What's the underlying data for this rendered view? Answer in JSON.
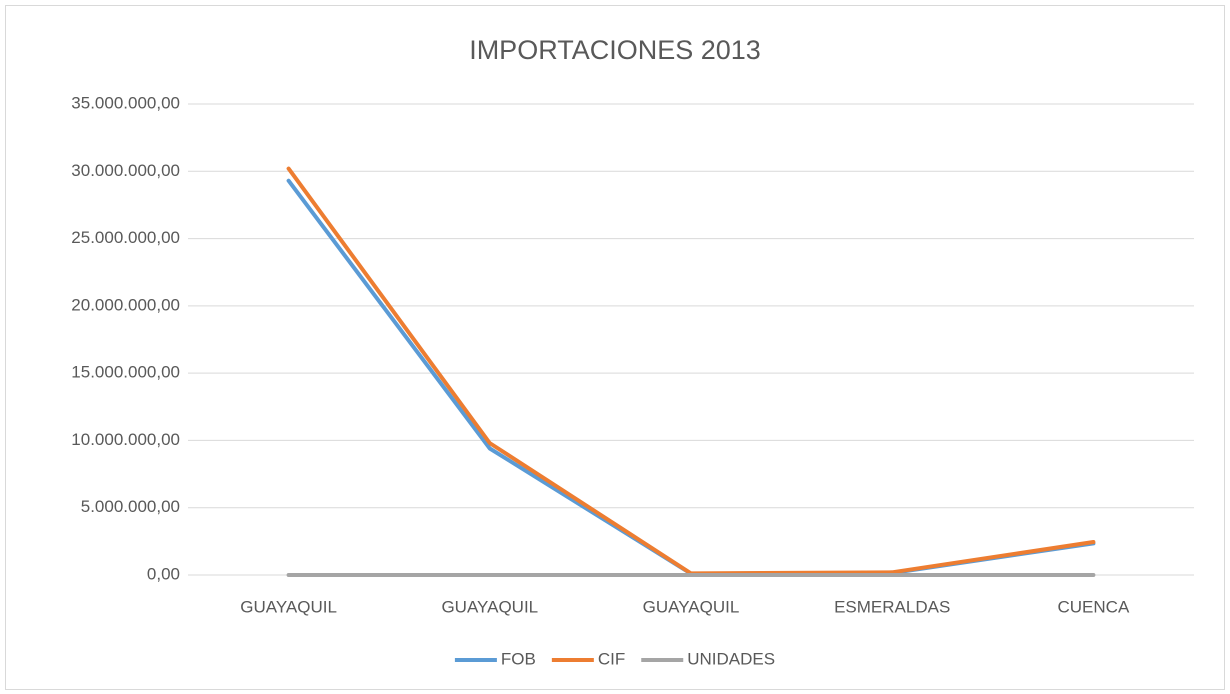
{
  "chart_data": {
    "type": "line",
    "title": "IMPORTACIONES 2013",
    "categories": [
      "GUAYAQUIL",
      "GUAYAQUIL",
      "GUAYAQUIL",
      "ESMERALDAS",
      "CUENCA"
    ],
    "series": [
      {
        "name": "FOB",
        "color": "#5b9bd5",
        "values": [
          29300000,
          9400000,
          100000,
          150000,
          2350000
        ]
      },
      {
        "name": "CIF",
        "color": "#ed7d31",
        "values": [
          30200000,
          9800000,
          120000,
          200000,
          2450000
        ]
      },
      {
        "name": "UNIDADES",
        "color": "#a5a5a5",
        "values": [
          0,
          0,
          0,
          0,
          0
        ]
      }
    ],
    "ylim": [
      0,
      35000000
    ],
    "yticks": [
      {
        "value": 0,
        "label": "0,00"
      },
      {
        "value": 5000000,
        "label": "5.000.000,00"
      },
      {
        "value": 10000000,
        "label": "10.000.000,00"
      },
      {
        "value": 15000000,
        "label": "15.000.000,00"
      },
      {
        "value": 20000000,
        "label": "20.000.000,00"
      },
      {
        "value": 25000000,
        "label": "25.000.000,00"
      },
      {
        "value": 30000000,
        "label": "30.000.000,00"
      },
      {
        "value": 35000000,
        "label": "35.000.000,00"
      }
    ],
    "grid": true,
    "legend": "bottom"
  }
}
